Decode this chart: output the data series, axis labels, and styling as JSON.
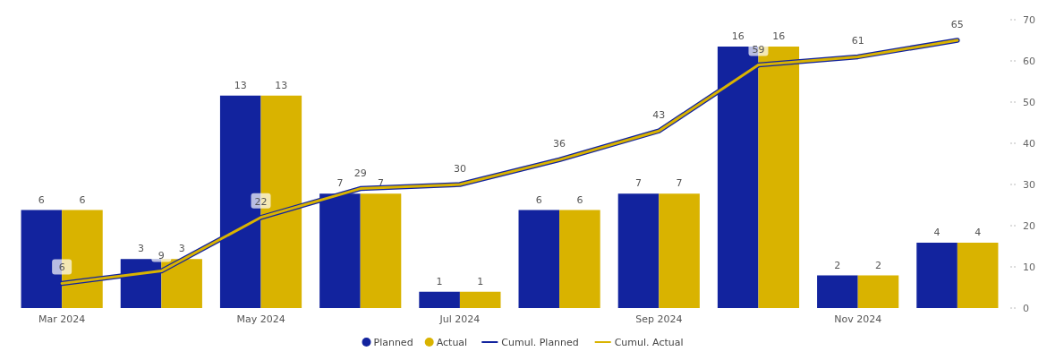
{
  "chart_data": {
    "type": "bar",
    "categories": [
      "Mar 2024",
      null,
      "May 2024",
      null,
      "Jul 2024",
      null,
      "Sep 2024",
      null,
      "Nov 2024",
      null
    ],
    "series": [
      {
        "name": "Planned",
        "color": "#12239e",
        "values": [
          6,
          3,
          13,
          7,
          1,
          6,
          7,
          16,
          2,
          4
        ],
        "value_labels": [
          "6",
          "3",
          "13",
          "7",
          "1",
          "6",
          "7",
          "16",
          "2",
          "4"
        ]
      },
      {
        "name": "Actual",
        "color": "#d9b300",
        "values": [
          6,
          3,
          13,
          7,
          1,
          6,
          7,
          16,
          2,
          4
        ],
        "value_labels": [
          "6",
          "3",
          "13",
          "7",
          "1",
          "6",
          "7",
          "16",
          "2",
          "4"
        ]
      },
      {
        "name": "Cumul. Planned",
        "type": "line",
        "axis": "y2",
        "color": "#12239e",
        "values": [
          6,
          9,
          22,
          29,
          30,
          36,
          43,
          59,
          61,
          65
        ]
      },
      {
        "name": "Cumul. Actual",
        "type": "line",
        "axis": "y2",
        "color": "#d9b300",
        "values": [
          6,
          9,
          22,
          29,
          30,
          36,
          43,
          59,
          61,
          65
        ],
        "value_labels": [
          "6",
          "9",
          "22",
          "29",
          "30",
          "36",
          "43",
          "59",
          "61",
          "65"
        ]
      }
    ],
    "y2lim": [
      0,
      70
    ],
    "y2ticks": [
      0,
      10,
      20,
      30,
      40,
      50,
      60,
      70
    ],
    "legend": "bottom"
  }
}
